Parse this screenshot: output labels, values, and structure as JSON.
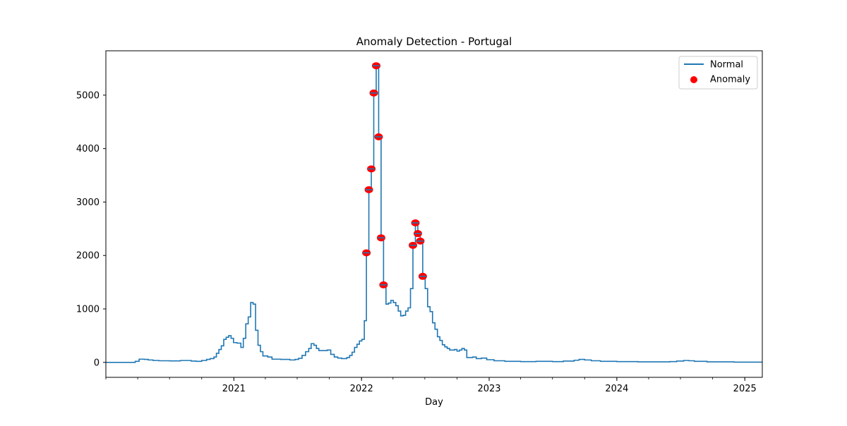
{
  "chart_data": {
    "type": "line",
    "title": "Anomaly Detection - Portugal",
    "xlabel": "Day",
    "ylabel": "",
    "x_axis": "date",
    "xlim": [
      "2020-01-01",
      "2025-02-20"
    ],
    "ylim": [
      -280,
      5830
    ],
    "y_ticks": [
      0,
      1000,
      2000,
      3000,
      4000,
      5000
    ],
    "x_tick_labels": [
      "2021",
      "2022",
      "2023",
      "2024",
      "2025"
    ],
    "grid": false,
    "legend": {
      "position": "upper right",
      "entries": [
        "Normal",
        "Anomaly"
      ]
    },
    "colors": {
      "normal": "#1f77b4",
      "anomaly": "#ff0000"
    },
    "series": [
      {
        "name": "Normal",
        "kind": "step-line",
        "points": [
          [
            "2020-01-01",
            0
          ],
          [
            "2020-03-10",
            0
          ],
          [
            "2020-03-25",
            20
          ],
          [
            "2020-04-05",
            60
          ],
          [
            "2020-04-20",
            55
          ],
          [
            "2020-05-01",
            45
          ],
          [
            "2020-05-15",
            35
          ],
          [
            "2020-06-01",
            30
          ],
          [
            "2020-07-01",
            28
          ],
          [
            "2020-08-01",
            35
          ],
          [
            "2020-09-01",
            25
          ],
          [
            "2020-09-15",
            20
          ],
          [
            "2020-10-01",
            35
          ],
          [
            "2020-10-15",
            55
          ],
          [
            "2020-10-25",
            70
          ],
          [
            "2020-11-05",
            100
          ],
          [
            "2020-11-12",
            170
          ],
          [
            "2020-11-19",
            240
          ],
          [
            "2020-11-26",
            310
          ],
          [
            "2020-12-03",
            430
          ],
          [
            "2020-12-10",
            470
          ],
          [
            "2020-12-17",
            500
          ],
          [
            "2020-12-24",
            450
          ],
          [
            "2020-12-31",
            370
          ],
          [
            "2021-01-10",
            360
          ],
          [
            "2021-01-21",
            280
          ],
          [
            "2021-01-28",
            450
          ],
          [
            "2021-02-04",
            720
          ],
          [
            "2021-02-11",
            850
          ],
          [
            "2021-02-18",
            1120
          ],
          [
            "2021-02-25",
            1090
          ],
          [
            "2021-03-04",
            600
          ],
          [
            "2021-03-11",
            320
          ],
          [
            "2021-03-18",
            200
          ],
          [
            "2021-03-25",
            120
          ],
          [
            "2021-04-08",
            100
          ],
          [
            "2021-04-20",
            60
          ],
          [
            "2021-05-15",
            55
          ],
          [
            "2021-06-10",
            45
          ],
          [
            "2021-06-25",
            55
          ],
          [
            "2021-07-05",
            75
          ],
          [
            "2021-07-15",
            130
          ],
          [
            "2021-07-25",
            200
          ],
          [
            "2021-08-03",
            260
          ],
          [
            "2021-08-10",
            350
          ],
          [
            "2021-08-18",
            320
          ],
          [
            "2021-08-25",
            260
          ],
          [
            "2021-09-01",
            220
          ],
          [
            "2021-09-25",
            230
          ],
          [
            "2021-10-05",
            150
          ],
          [
            "2021-10-15",
            100
          ],
          [
            "2021-10-25",
            80
          ],
          [
            "2021-11-05",
            70
          ],
          [
            "2021-11-20",
            90
          ],
          [
            "2021-11-28",
            130
          ],
          [
            "2021-12-05",
            190
          ],
          [
            "2021-12-12",
            280
          ],
          [
            "2021-12-19",
            340
          ],
          [
            "2021-12-26",
            400
          ],
          [
            "2022-01-02",
            430
          ],
          [
            "2022-01-09",
            780
          ],
          [
            "2022-01-15",
            2050
          ],
          [
            "2022-01-22",
            3230
          ],
          [
            "2022-01-29",
            3620
          ],
          [
            "2022-02-05",
            5040
          ],
          [
            "2022-02-12",
            5550
          ],
          [
            "2022-02-19",
            4220
          ],
          [
            "2022-02-26",
            2330
          ],
          [
            "2022-03-05",
            1450
          ],
          [
            "2022-03-12",
            1090
          ],
          [
            "2022-03-19",
            1110
          ],
          [
            "2022-03-26",
            1160
          ],
          [
            "2022-04-02",
            1120
          ],
          [
            "2022-04-09",
            1060
          ],
          [
            "2022-04-16",
            960
          ],
          [
            "2022-04-23",
            870
          ],
          [
            "2022-04-30",
            880
          ],
          [
            "2022-05-07",
            960
          ],
          [
            "2022-05-14",
            1020
          ],
          [
            "2022-05-21",
            1380
          ],
          [
            "2022-05-28",
            2190
          ],
          [
            "2022-06-04",
            2610
          ],
          [
            "2022-06-11",
            2410
          ],
          [
            "2022-06-18",
            2270
          ],
          [
            "2022-06-25",
            1610
          ],
          [
            "2022-07-02",
            1380
          ],
          [
            "2022-07-09",
            1040
          ],
          [
            "2022-07-16",
            950
          ],
          [
            "2022-07-23",
            740
          ],
          [
            "2022-07-30",
            620
          ],
          [
            "2022-08-06",
            480
          ],
          [
            "2022-08-13",
            410
          ],
          [
            "2022-08-20",
            330
          ],
          [
            "2022-08-27",
            290
          ],
          [
            "2022-09-03",
            260
          ],
          [
            "2022-09-10",
            230
          ],
          [
            "2022-09-24",
            240
          ],
          [
            "2022-10-01",
            210
          ],
          [
            "2022-10-08",
            230
          ],
          [
            "2022-10-15",
            260
          ],
          [
            "2022-10-22",
            230
          ],
          [
            "2022-10-29",
            90
          ],
          [
            "2022-11-15",
            100
          ],
          [
            "2022-11-25",
            70
          ],
          [
            "2022-12-10",
            80
          ],
          [
            "2022-12-25",
            50
          ],
          [
            "2023-01-15",
            30
          ],
          [
            "2023-02-15",
            20
          ],
          [
            "2023-04-01",
            15
          ],
          [
            "2023-05-15",
            20
          ],
          [
            "2023-07-01",
            15
          ],
          [
            "2023-08-01",
            25
          ],
          [
            "2023-09-01",
            40
          ],
          [
            "2023-09-15",
            55
          ],
          [
            "2023-10-01",
            45
          ],
          [
            "2023-10-20",
            30
          ],
          [
            "2023-11-15",
            20
          ],
          [
            "2024-01-01",
            15
          ],
          [
            "2024-03-01",
            10
          ],
          [
            "2024-05-01",
            10
          ],
          [
            "2024-06-01",
            15
          ],
          [
            "2024-06-20",
            25
          ],
          [
            "2024-07-10",
            35
          ],
          [
            "2024-07-25",
            30
          ],
          [
            "2024-08-10",
            20
          ],
          [
            "2024-09-15",
            10
          ],
          [
            "2024-12-01",
            5
          ],
          [
            "2025-02-20",
            5
          ]
        ]
      },
      {
        "name": "Anomaly",
        "kind": "scatter",
        "points": [
          [
            "2022-01-15",
            2050
          ],
          [
            "2022-01-22",
            3230
          ],
          [
            "2022-01-29",
            3620
          ],
          [
            "2022-02-05",
            5040
          ],
          [
            "2022-02-12",
            5550
          ],
          [
            "2022-02-19",
            4220
          ],
          [
            "2022-02-26",
            2330
          ],
          [
            "2022-03-05",
            1450
          ],
          [
            "2022-05-28",
            2190
          ],
          [
            "2022-06-04",
            2610
          ],
          [
            "2022-06-11",
            2410
          ],
          [
            "2022-06-18",
            2270
          ],
          [
            "2022-06-25",
            1610
          ]
        ]
      }
    ]
  }
}
